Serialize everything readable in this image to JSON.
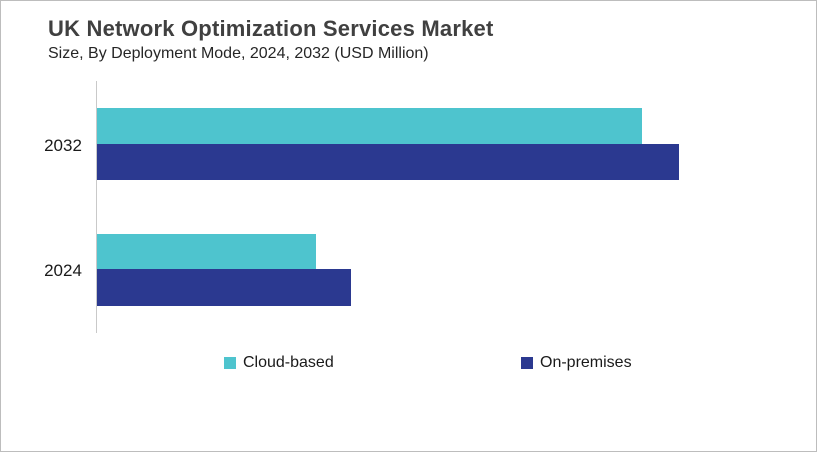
{
  "header": {
    "title": "UK Network Optimization Services Market",
    "subtitle": "Size, By Deployment Mode, 2024, 2032 (USD Million)"
  },
  "colors": {
    "title_text": "#404040",
    "subtitle_text": "#262626",
    "label_text": "#1a1a1a",
    "axis_line": "#c9c9c9",
    "cloud_based": "#4EC4CE",
    "on_premises": "#2B3990",
    "frame_border": "#bdbdbd"
  },
  "chart_data": {
    "type": "bar",
    "orientation": "horizontal",
    "title": "UK Network Optimization Services Market",
    "subtitle": "Size, By Deployment Mode, 2024, 2032 (USD Million)",
    "value_unit_label": "USD Million",
    "categories": [
      "2032",
      "2024"
    ],
    "series": [
      {
        "name": "Cloud-based",
        "color": "#4EC4CE",
        "values": [
          77.9,
          31.3
        ]
      },
      {
        "name": "On-premises",
        "color": "#2B3990",
        "values": [
          83.1,
          36.3
        ]
      }
    ],
    "value_axis": {
      "xlim": [
        0,
        100
      ],
      "tick_labels_visible": false,
      "note": "no numeric axis labels shown; values estimated as percent of plot width"
    },
    "grid": false,
    "legend_position": "bottom"
  }
}
